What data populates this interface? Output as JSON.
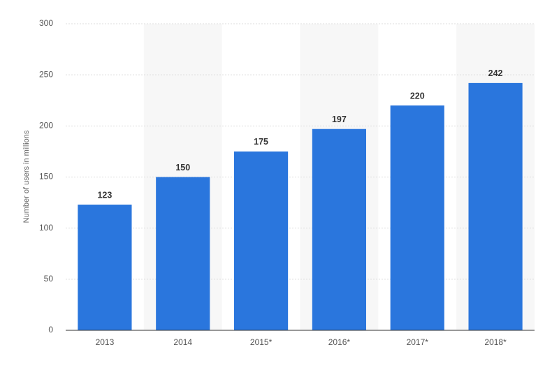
{
  "chart_data": {
    "type": "bar",
    "y_label": "Number of users in millions",
    "categories": [
      "2013",
      "2014",
      "2015*",
      "2016*",
      "2017*",
      "2018*"
    ],
    "values": [
      123,
      150,
      175,
      197,
      220,
      242
    ],
    "color": "#2a76dd",
    "ylim": [
      0,
      300
    ],
    "yticks": [
      0,
      50,
      100,
      150,
      200,
      250,
      300
    ],
    "grid": true
  }
}
